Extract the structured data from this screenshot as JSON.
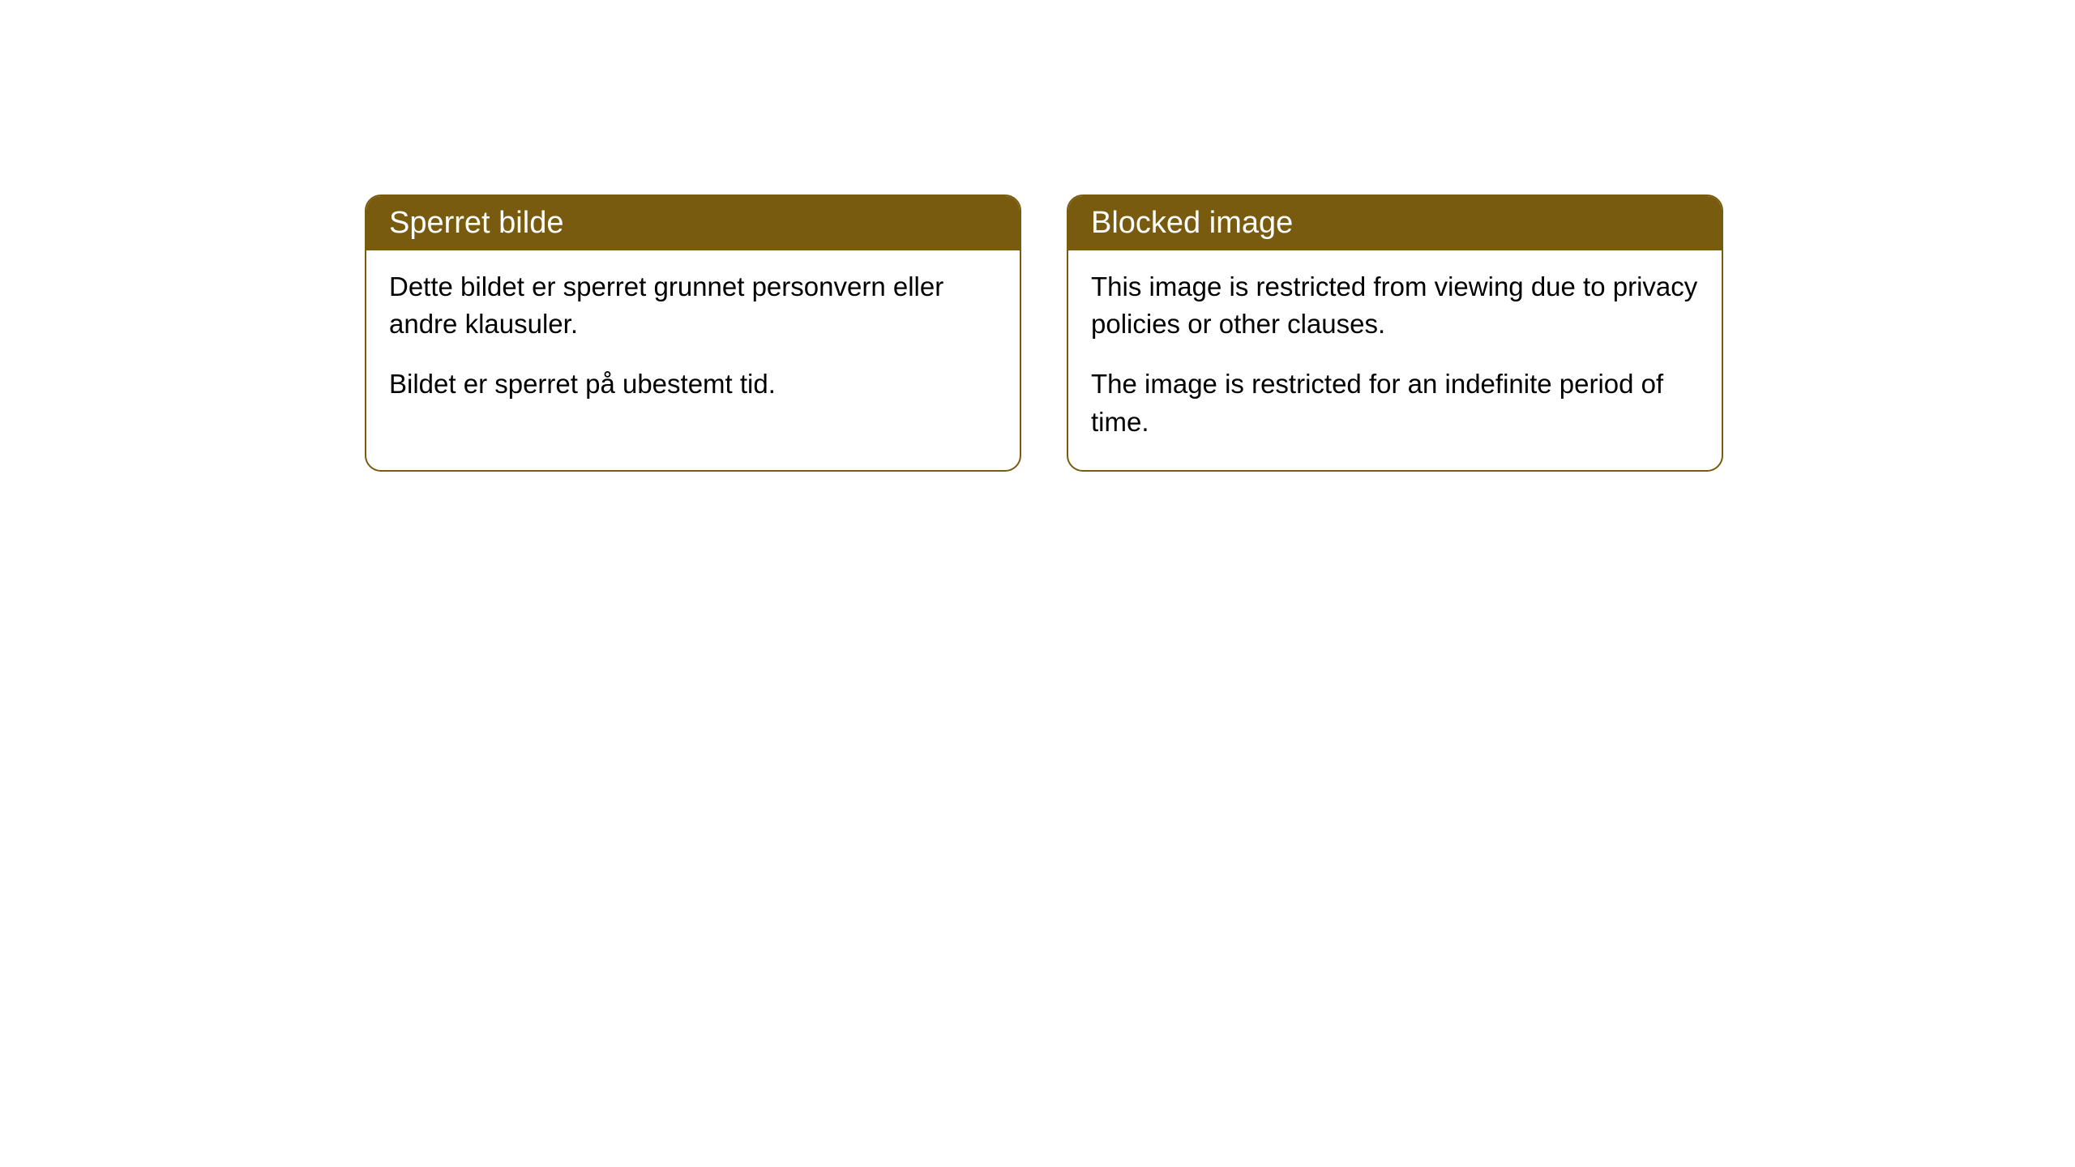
{
  "cards": [
    {
      "title": "Sperret bilde",
      "paragraph1": "Dette bildet er sperret grunnet personvern eller andre klausuler.",
      "paragraph2": "Bildet er sperret på ubestemt tid."
    },
    {
      "title": "Blocked image",
      "paragraph1": "This image is restricted from viewing due to privacy policies or other clauses.",
      "paragraph2": "The image is restricted for an indefinite period of time."
    }
  ],
  "styling": {
    "header_bg_color": "#785b0e",
    "header_text_color": "#ffffff",
    "border_color": "#785b0e",
    "card_bg_color": "#ffffff",
    "body_text_color": "#000000",
    "border_radius": 20,
    "header_fontsize": 38,
    "body_fontsize": 33
  }
}
